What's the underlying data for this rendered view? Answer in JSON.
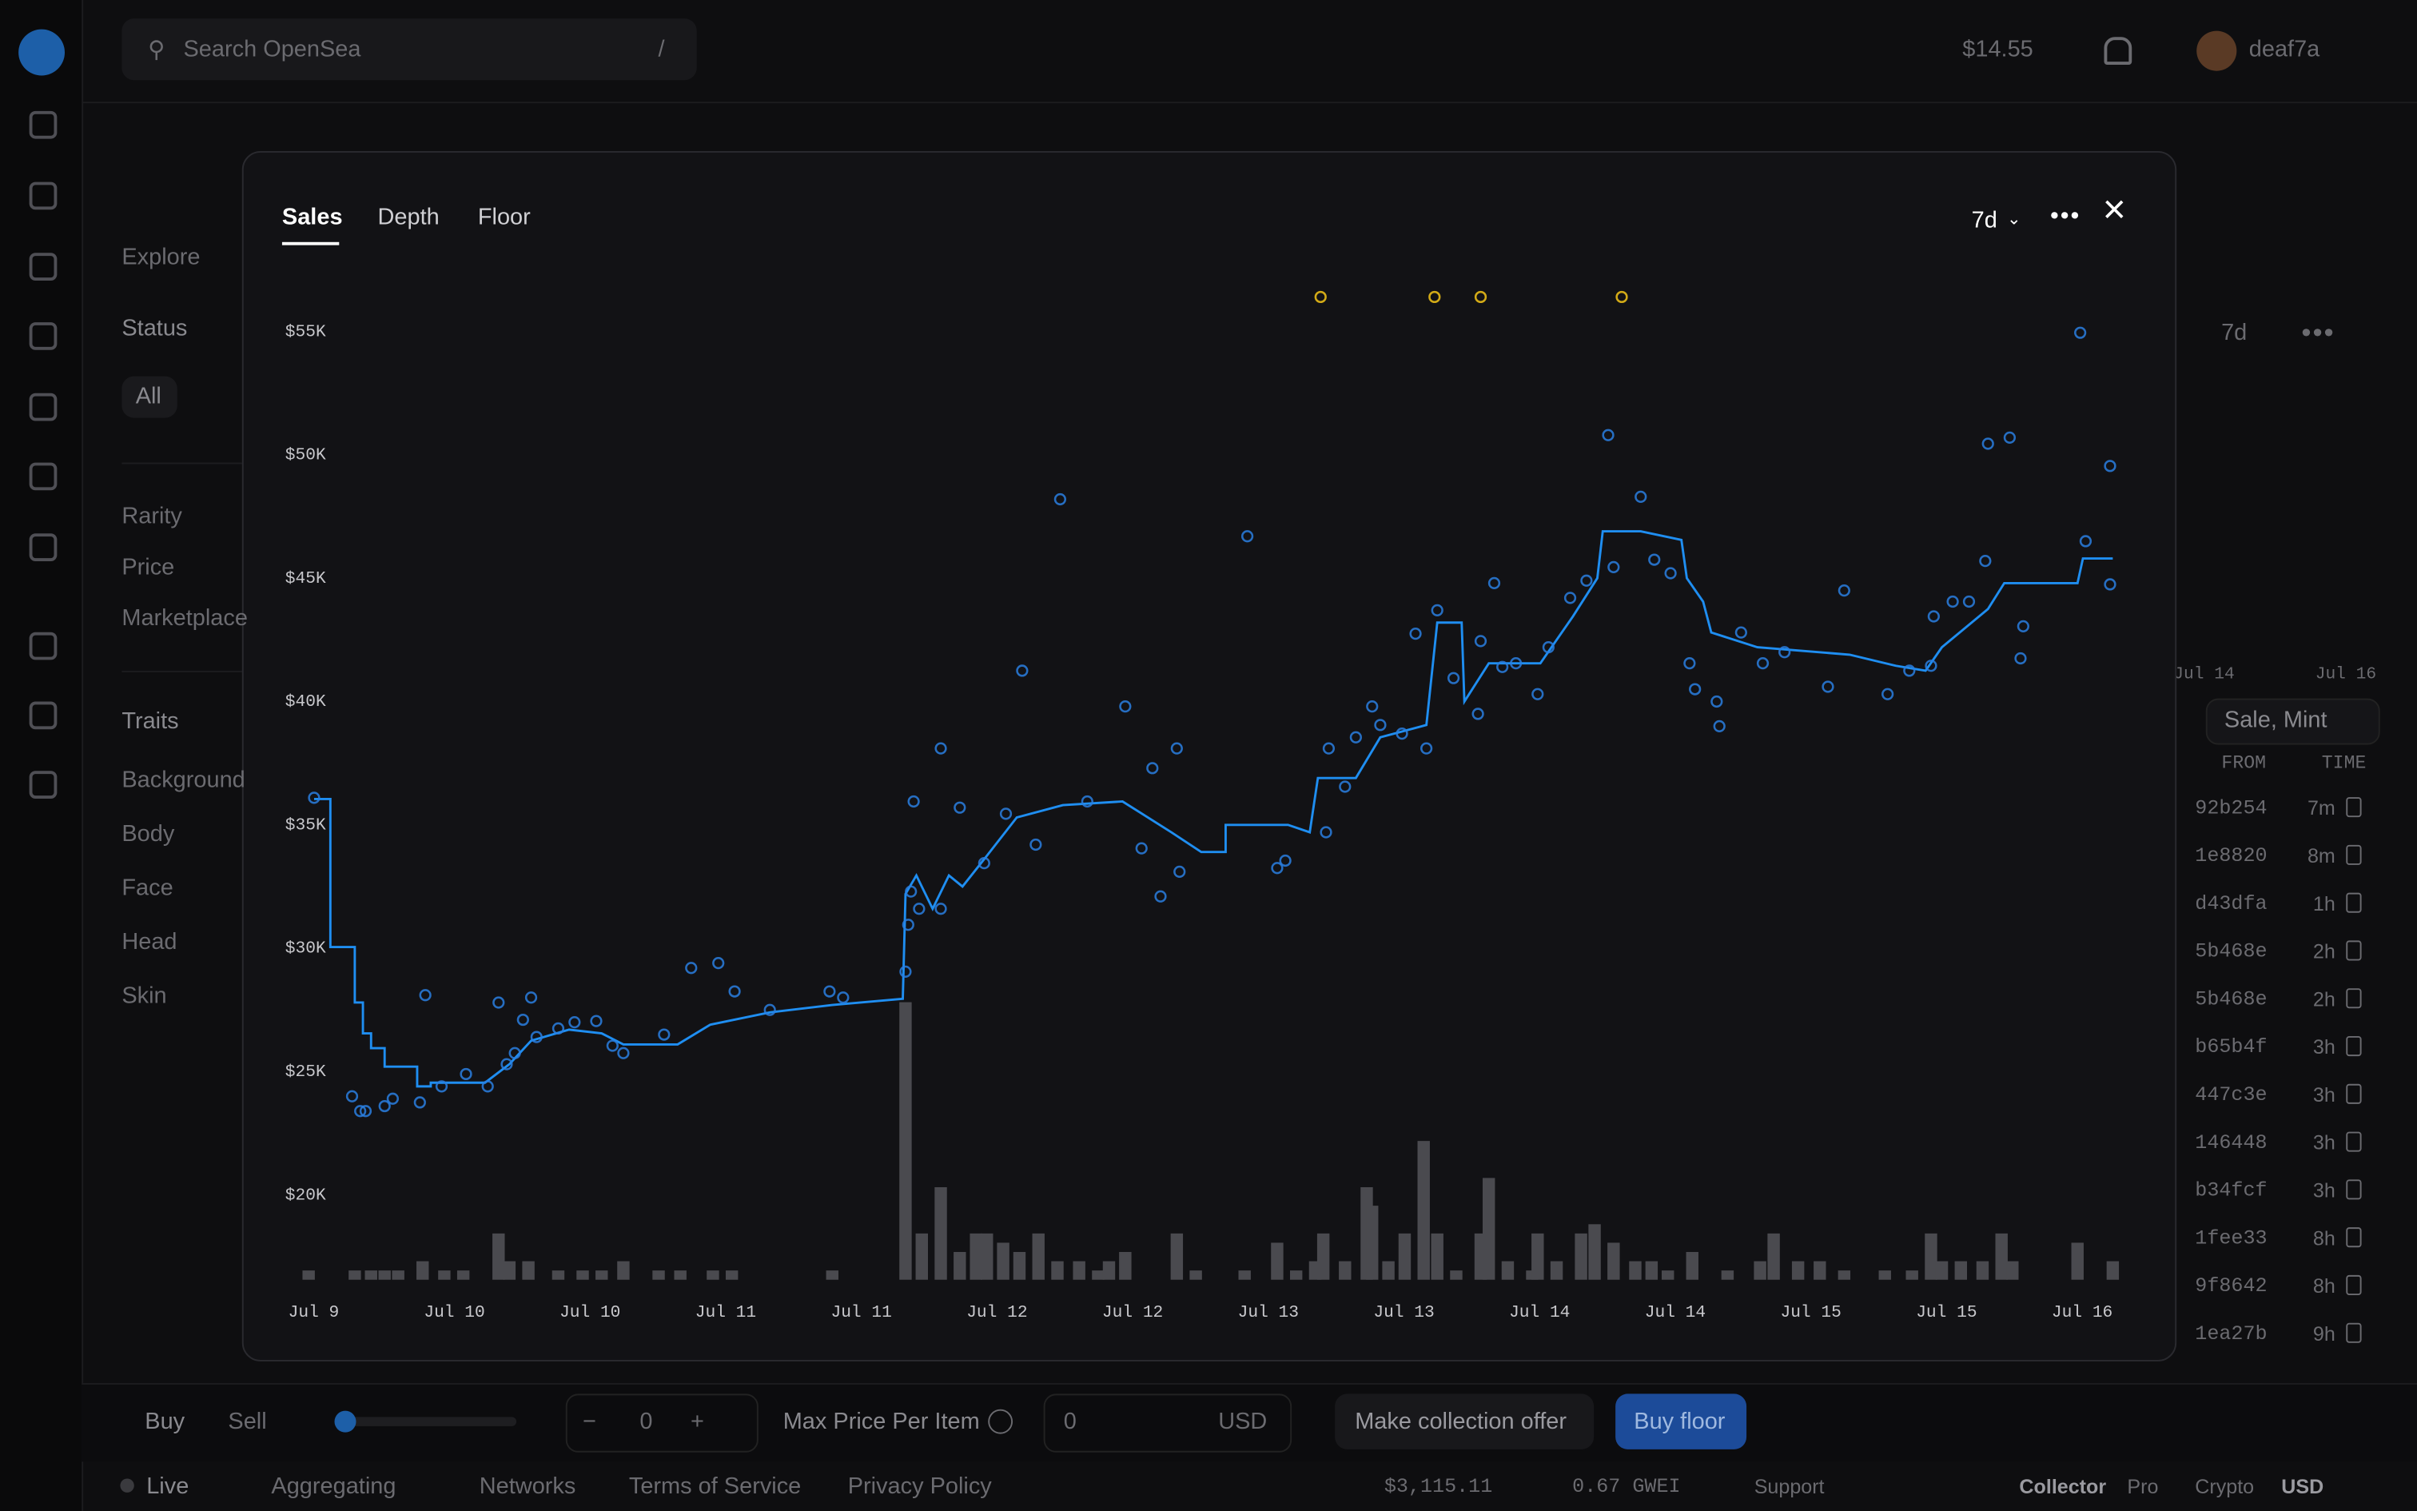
{
  "top_bar": {
    "search_placeholder": "Search OpenSea",
    "search_shortcut": "/",
    "balance": "$14.55",
    "username": "deaf7a"
  },
  "filters": {
    "tab": "Explore",
    "status": "Status",
    "status_all": "All",
    "items": [
      "Rarity",
      "Price",
      "Marketplace"
    ],
    "traits": "Traits",
    "trait_list": [
      "Background",
      "Body",
      "Face",
      "Head",
      "Skin"
    ]
  },
  "activity": {
    "period": "7d",
    "event_filter": "Sale, Mint",
    "columns": [
      "FROM",
      "TIME"
    ],
    "chart_ticks": [
      "Jul 14",
      "Jul 16"
    ],
    "rows": [
      [
        "92b254",
        "7m"
      ],
      [
        "1e8820",
        "8m"
      ],
      [
        "d43dfa",
        "1h"
      ],
      [
        "5b468e",
        "2h"
      ],
      [
        "5b468e",
        "2h"
      ],
      [
        "b65b4f",
        "3h"
      ],
      [
        "447c3e",
        "3h"
      ],
      [
        "146448",
        "3h"
      ],
      [
        "b34fcf",
        "3h"
      ],
      [
        "1fee33",
        "8h"
      ],
      [
        "9f8642",
        "8h"
      ],
      [
        "1ea27b",
        "9h"
      ]
    ]
  },
  "buy_bar": {
    "tabs": [
      "Buy",
      "Sell"
    ],
    "quantity": "0",
    "max_price_label": "Max Price Per Item",
    "price_input": "0",
    "currency": "USD",
    "offer_button": "Make collection offer",
    "buy_button": "Buy floor"
  },
  "footer": {
    "status": "Live",
    "aggregating": "Aggregating",
    "networks": "Networks",
    "links": [
      "Terms of Service",
      "Privacy Policy"
    ],
    "eth_price": "$3,115.11",
    "gas": "0.67 GWEI",
    "support": "Support",
    "modes": [
      "Collector",
      "Pro"
    ],
    "currencies": [
      "Crypto",
      "USD"
    ]
  },
  "modal": {
    "tabs": [
      "Sales",
      "Depth",
      "Floor"
    ],
    "period": "7d"
  },
  "chart_data": {
    "type": "combo",
    "xlim": [
      -0.05,
      6.75
    ],
    "xticks": [
      {
        "value": 0,
        "label": "Jul 9"
      },
      {
        "value": 0.5,
        "label": "Jul 10"
      },
      {
        "value": 1,
        "label": "Jul 10"
      },
      {
        "value": 1.5,
        "label": "Jul 11"
      },
      {
        "value": 2,
        "label": "Jul 11"
      },
      {
        "value": 2.5,
        "label": "Jul 12"
      },
      {
        "value": 3,
        "label": "Jul 12"
      },
      {
        "value": 3.5,
        "label": "Jul 13"
      },
      {
        "value": 4,
        "label": "Jul 13"
      },
      {
        "value": 4.5,
        "label": "Jul 14"
      },
      {
        "value": 5,
        "label": "Jul 14"
      },
      {
        "value": 5.5,
        "label": "Jul 15"
      },
      {
        "value": 6,
        "label": "Jul 15"
      },
      {
        "value": 6.5,
        "label": "Jul 16"
      }
    ],
    "ylim": [
      16562.5,
      56875
    ],
    "yticks": [
      {
        "value": 20000,
        "label": "$20K"
      },
      {
        "value": 25000,
        "label": "$25K"
      },
      {
        "value": 30000,
        "label": "$30K"
      },
      {
        "value": 35000,
        "label": "$35K"
      },
      {
        "value": 40000,
        "label": "$40K"
      },
      {
        "value": 45000,
        "label": "$45K"
      },
      {
        "value": 50000,
        "label": "$50K"
      },
      {
        "value": 55000,
        "label": "$55K"
      }
    ],
    "y2lim": [
      0,
      40
    ],
    "grid": false,
    "series": [
      {
        "type": "bar",
        "axis": "y2",
        "color": "#4a4a4f",
        "x": [
          -0.01,
          0.16,
          0.22,
          0.27,
          0.32,
          0.41,
          0.49,
          0.56,
          0.69,
          0.73,
          0.8,
          0.91,
          1.0,
          1.07,
          1.15,
          1.28,
          1.36,
          1.48,
          1.55,
          1.92,
          2.19,
          2.25,
          2.32,
          2.39,
          2.45,
          2.49,
          2.55,
          2.61,
          2.68,
          2.75,
          2.83,
          2.9,
          2.94,
          3.0,
          3.19,
          3.26,
          3.44,
          3.56,
          3.63,
          3.7,
          3.73,
          3.81,
          3.89,
          3.91,
          3.97,
          4.03,
          4.1,
          4.15,
          4.22,
          4.31,
          4.34,
          4.41,
          4.5,
          4.52,
          4.59,
          4.68,
          4.73,
          4.8,
          4.88,
          4.94,
          5.0,
          5.09,
          5.22,
          5.34,
          5.39,
          5.48,
          5.56,
          5.65,
          5.8,
          5.9,
          5.97,
          6.01,
          6.08,
          6.16,
          6.23,
          6.27,
          6.51,
          6.64
        ],
        "values": [
          1,
          1,
          1,
          1,
          1,
          2,
          1,
          1,
          5,
          2,
          2,
          1,
          1,
          1,
          2,
          1,
          1,
          1,
          1,
          1,
          30,
          5,
          10,
          3,
          5,
          5,
          4,
          3,
          5,
          2,
          2,
          1,
          2,
          3,
          5,
          1,
          1,
          4,
          1,
          2,
          5,
          2,
          10,
          8,
          2,
          5,
          15,
          5,
          1,
          5,
          11,
          2,
          1,
          5,
          2,
          5,
          6,
          4,
          2,
          2,
          1,
          3,
          1,
          2,
          5,
          2,
          2,
          1,
          1,
          1,
          5,
          2,
          2,
          2,
          5,
          2,
          4,
          2
        ]
      },
      {
        "type": "line",
        "color": "#1f8ef1",
        "x": [
          0.01,
          0.07,
          0.07,
          0.16,
          0.16,
          0.19,
          0.19,
          0.22,
          0.22,
          0.27,
          0.27,
          0.39,
          0.39,
          0.44,
          0.44,
          0.64,
          0.73,
          0.81,
          0.95,
          1.07,
          1.15,
          1.35,
          1.47,
          1.69,
          1.92,
          2.18,
          2.19,
          2.23,
          2.29,
          2.35,
          2.4,
          2.49,
          2.6,
          2.77,
          2.99,
          3.17,
          3.28,
          3.37,
          3.37,
          3.6,
          3.68,
          3.71,
          3.85,
          3.94,
          4.11,
          4.15,
          4.24,
          4.25,
          4.34,
          4.53,
          4.65,
          4.74,
          4.76,
          4.9,
          5.05,
          5.07,
          5.13,
          5.16,
          5.33,
          5.67,
          5.84,
          5.95,
          6.01,
          6.18,
          6.24,
          6.51,
          6.53,
          6.64
        ],
        "values": [
          36050,
          36050,
          30050,
          30050,
          27800,
          27800,
          26550,
          26550,
          25950,
          25950,
          25200,
          25200,
          24400,
          24400,
          24550,
          24550,
          25300,
          26250,
          26700,
          26550,
          26100,
          26100,
          26900,
          27400,
          27700,
          27950,
          32200,
          32950,
          31600,
          32950,
          32500,
          33750,
          35300,
          35800,
          35950,
          34700,
          33900,
          33900,
          35000,
          35000,
          34700,
          36900,
          36900,
          38550,
          39050,
          43200,
          43200,
          40000,
          41550,
          41550,
          43450,
          45000,
          46900,
          46900,
          46550,
          45000,
          44050,
          42800,
          42200,
          41900,
          41450,
          41250,
          42200,
          43750,
          44800,
          44800,
          45800,
          45800
        ]
      },
      {
        "type": "scatter",
        "color": "#2a7fe0",
        "x": [
          0.01,
          0.15,
          0.18,
          0.2,
          0.27,
          0.3,
          0.4,
          0.42,
          0.48,
          0.57,
          0.65,
          0.69,
          0.72,
          0.75,
          0.78,
          0.81,
          0.83,
          0.91,
          0.97,
          1.05,
          1.11,
          1.15,
          1.3,
          1.4,
          1.5,
          1.56,
          1.69,
          1.91,
          1.96,
          2.19,
          2.2,
          2.21,
          2.22,
          2.24,
          2.32,
          2.32,
          2.39,
          2.48,
          2.56,
          2.62,
          2.67,
          2.76,
          2.86,
          3.0,
          3.06,
          3.1,
          3.13,
          3.19,
          3.2,
          3.45,
          3.56,
          3.59,
          3.74,
          3.75,
          3.81,
          3.85,
          3.91,
          3.94,
          4.02,
          4.07,
          4.11,
          4.15,
          4.21,
          4.3,
          4.31,
          4.36,
          4.39,
          4.44,
          4.52,
          4.56,
          4.64,
          4.7,
          4.78,
          4.8,
          4.9,
          4.95,
          5.01,
          5.08,
          5.1,
          5.18,
          5.19,
          5.27,
          5.35,
          5.43,
          5.59,
          5.65,
          5.81,
          5.89,
          5.97,
          5.98,
          6.05,
          6.11,
          6.17,
          6.18,
          6.26,
          6.3,
          6.31,
          6.52,
          6.54,
          6.63,
          6.63
        ],
        "values": [
          36100,
          24000,
          23400,
          23400,
          23600,
          23900,
          23750,
          28100,
          24400,
          24900,
          24400,
          27800,
          25300,
          25750,
          27100,
          28000,
          26400,
          26750,
          27000,
          27050,
          26050,
          25750,
          26500,
          29200,
          29400,
          28250,
          27500,
          28250,
          28000,
          29050,
          30950,
          32300,
          35950,
          31600,
          38100,
          31600,
          35700,
          33450,
          35450,
          41250,
          34200,
          48200,
          35950,
          39800,
          34050,
          37300,
          32100,
          38100,
          33100,
          46700,
          33250,
          33550,
          34700,
          38100,
          36550,
          38550,
          39800,
          39050,
          38700,
          42750,
          38100,
          43700,
          40950,
          39500,
          42450,
          44800,
          41400,
          41550,
          40300,
          42200,
          44200,
          44900,
          50800,
          45450,
          48300,
          45750,
          45200,
          41550,
          40500,
          40000,
          39000,
          42800,
          41550,
          42000,
          40600,
          44500,
          40300,
          41250,
          41450,
          43450,
          44050,
          44050,
          45700,
          50450,
          50700,
          41750,
          43050,
          54950,
          46500,
          49550,
          44750
        ]
      },
      {
        "type": "scatter",
        "color": "#f5c518",
        "x": [
          3.72,
          4.14,
          4.31,
          4.83
        ],
        "values": [
          56400,
          56400,
          56400,
          56400
        ]
      }
    ]
  }
}
